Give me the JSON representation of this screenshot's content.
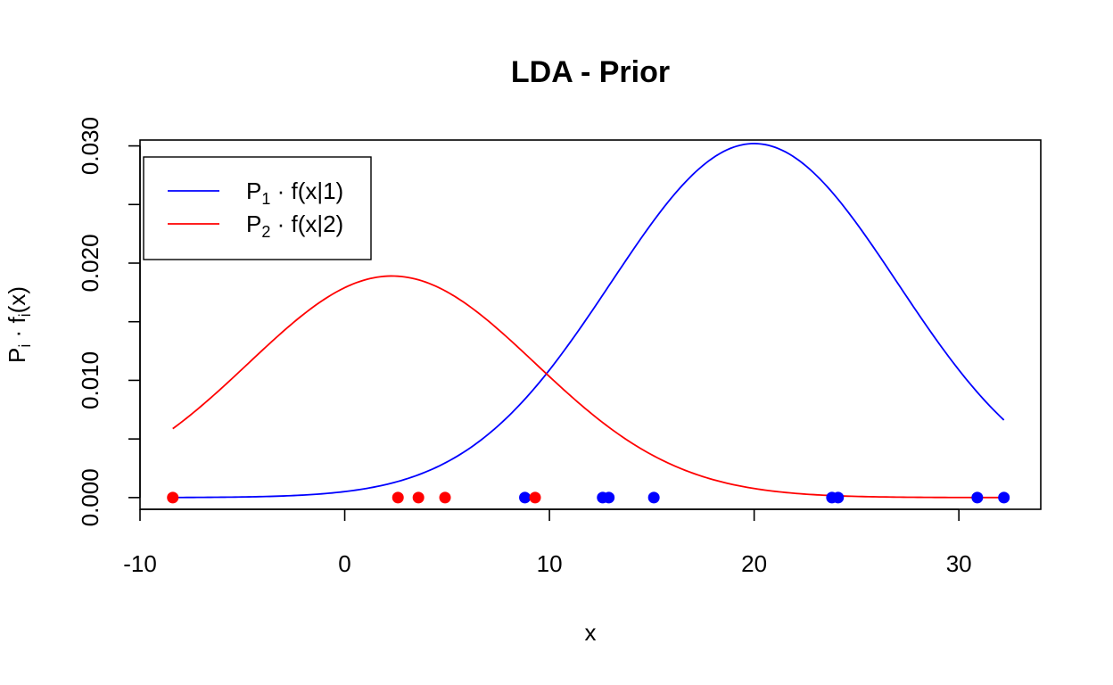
{
  "chart_data": {
    "type": "line",
    "title": "LDA - Prior",
    "xlabel": "x",
    "ylabel": {
      "base": "P",
      "sub": "i",
      "dot": "·",
      "func": "f",
      "sub2": "i",
      "arg": "(x)"
    },
    "xlim": [
      -10,
      34
    ],
    "ylim": [
      -0.001,
      0.0305
    ],
    "x_ticks": [
      -10,
      0,
      10,
      20,
      30
    ],
    "y_ticks": [
      0.0,
      0.005,
      0.01,
      0.015,
      0.02,
      0.025,
      0.03
    ],
    "y_tick_labels": [
      {
        "value": 0.0,
        "label": "0.000"
      },
      {
        "value": 0.01,
        "label": "0.010"
      },
      {
        "value": 0.02,
        "label": "0.020"
      },
      {
        "value": 0.03,
        "label": "0.030"
      }
    ],
    "x_range_curves": [
      -8.4,
      32.2
    ],
    "series": [
      {
        "name": "P1 · f(x|1)",
        "legend": {
          "base": "P",
          "sub": "1",
          "rest": " · f(x|1)"
        },
        "color": "#0000ff",
        "mean": 20.0,
        "sd": 7.0,
        "peak": 0.0302,
        "points_x": [
          8.8,
          12.6,
          12.9,
          15.1,
          23.8,
          24.1,
          30.9,
          32.2
        ],
        "points_y": 0.0
      },
      {
        "name": "P2 · f(x|2)",
        "legend": {
          "base": "P",
          "sub": "2",
          "rest": " · f(x|2)"
        },
        "color": "#ff0000",
        "mean": 2.3,
        "sd": 7.0,
        "peak": 0.0189,
        "points_x": [
          -8.4,
          2.6,
          3.6,
          4.9,
          9.3
        ],
        "points_y": 0.0
      }
    ],
    "legend_position": "top-left",
    "grid": false
  }
}
